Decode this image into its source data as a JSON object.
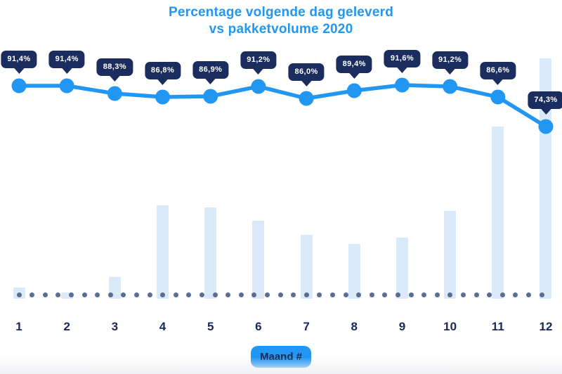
{
  "title": {
    "line1": "Percentage volgende dag geleverd",
    "line2": "vs pakketvolume 2020"
  },
  "x_axis": {
    "label": "Maand #",
    "ticks": [
      "1",
      "2",
      "3",
      "4",
      "5",
      "6",
      "7",
      "8",
      "9",
      "10",
      "11",
      "12"
    ]
  },
  "chart_data": {
    "type": "line+bar",
    "title": "Percentage volgende dag geleverd vs pakketvolume 2020",
    "categories": [
      "1",
      "2",
      "3",
      "4",
      "5",
      "6",
      "7",
      "8",
      "9",
      "10",
      "11",
      "12"
    ],
    "xlabel": "Maand #",
    "ylabel": "",
    "y_axis": "hidden",
    "legend": "none",
    "series": [
      {
        "name": "Percentage volgende dag geleverd",
        "type": "line",
        "unit": "%",
        "values": [
          91.4,
          91.4,
          88.3,
          86.8,
          86.9,
          91.2,
          86.0,
          89.4,
          91.6,
          91.2,
          86.6,
          74.3
        ],
        "labels": [
          "91,4%",
          "91,4%",
          "88,3%",
          "86,8%",
          "86,9%",
          "91,2%",
          "86,0%",
          "89,4%",
          "91,6%",
          "91,2%",
          "86,6%",
          "74,3%"
        ],
        "color": "#2196f3"
      },
      {
        "name": "Pakketvolume 2020",
        "type": "bar",
        "unit": "relative volume, estimated from bar heights (max month 12 = 100)",
        "values": [
          4.7,
          2.6,
          9.1,
          38.9,
          38.0,
          32.5,
          26.6,
          22.8,
          25.4,
          36.5,
          71.6,
          100
        ],
        "color": "#dbeafb"
      }
    ],
    "baseline_dots": {
      "color": "#5b6e91",
      "count": 41
    }
  },
  "colors": {
    "title_blue": "#2196f3",
    "line_blue": "#2196f3",
    "badge_navy": "#1b2d5e",
    "axis_navy": "#17295a",
    "bar_light_blue": "#dbeafb",
    "dot_slate": "#5b6e91",
    "background": "#ffffff"
  }
}
